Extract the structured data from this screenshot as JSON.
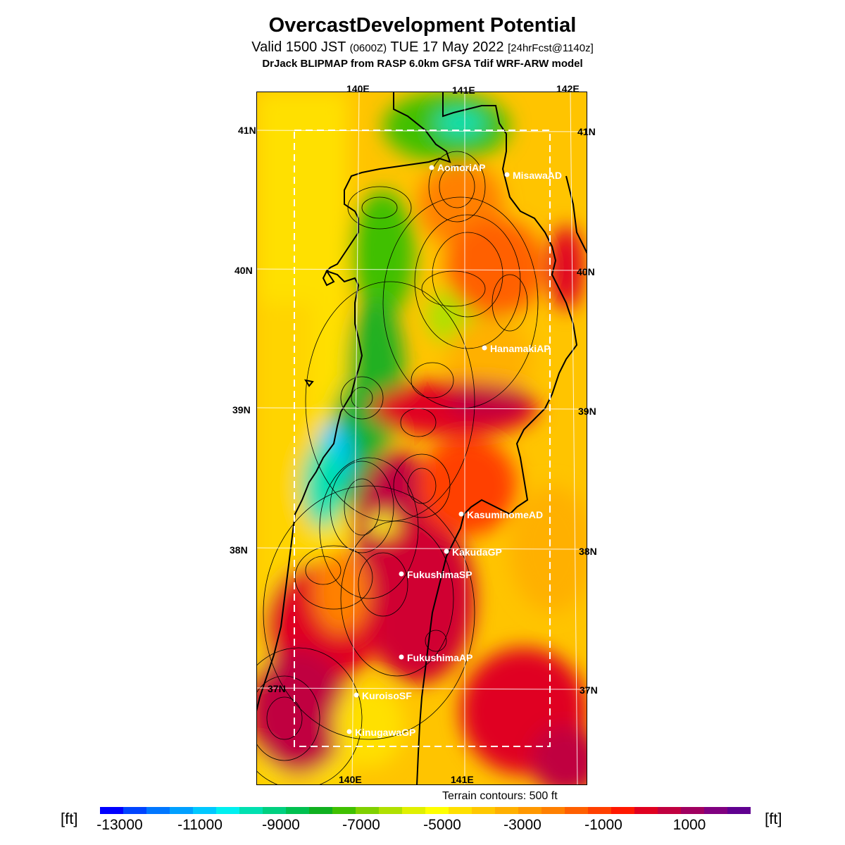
{
  "title": "OvercastDevelopment Potential",
  "subtitle": {
    "main": "Valid 1500 JST",
    "zulu": "(0600Z)",
    "date": "TUE 17 May 2022",
    "fcst": "[24hrFcst@1140z]"
  },
  "model_line": "DrJack BLIPMAP from RASP 6.0km GFSA Tdif WRF-ARW model",
  "lon_labels_top": [
    "140E",
    "141E",
    "142E"
  ],
  "lon_labels_bottom": [
    "140E",
    "141E"
  ],
  "lat_labels": [
    "41N",
    "40N",
    "39N",
    "38N",
    "37N"
  ],
  "stations": [
    "AomoriAP",
    "MisawaAD",
    "HanamakiAP",
    "KasuminomeAD",
    "KakudaGP",
    "FukushimaSP",
    "FukushimaAP",
    "KuroisoSF",
    "KinugawaGP"
  ],
  "terrain_note": "Terrain contours: 500 ft",
  "colorbar": {
    "unit": "[ft]",
    "ticks": [
      "-13000",
      "-11000",
      "-9000",
      "-7000",
      "-5000",
      "-3000",
      "-1000",
      "1000"
    ],
    "colors": [
      "#0000ff",
      "#0044ff",
      "#0077ff",
      "#00a0ff",
      "#00c8ff",
      "#00f0f0",
      "#00e0b0",
      "#00d080",
      "#00c050",
      "#10b020",
      "#40c000",
      "#80d000",
      "#b0e000",
      "#e0f000",
      "#ffff00",
      "#ffe000",
      "#ffc800",
      "#ffb000",
      "#ff9800",
      "#ff8000",
      "#ff6000",
      "#ff4000",
      "#ff1800",
      "#e00020",
      "#c00040",
      "#a00060",
      "#800080",
      "#600090"
    ]
  }
}
